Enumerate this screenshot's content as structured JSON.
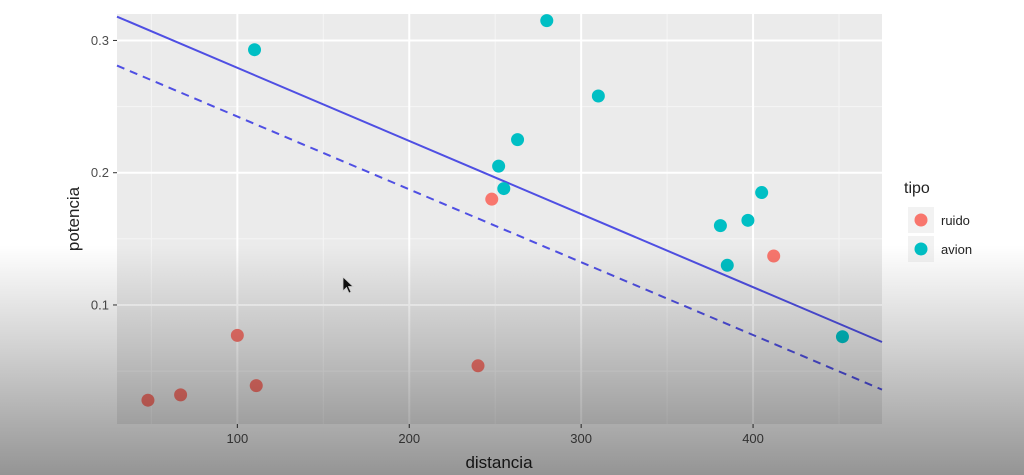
{
  "chart_data": {
    "type": "scatter",
    "title": "",
    "xlabel": "distancia",
    "ylabel": "potencia",
    "xlim": [
      30,
      475
    ],
    "ylim": [
      0.01,
      0.32
    ],
    "x_ticks": [
      {
        "value": 100,
        "label": "100"
      },
      {
        "value": 200,
        "label": "200"
      },
      {
        "value": 300,
        "label": "300"
      },
      {
        "value": 400,
        "label": "400"
      }
    ],
    "y_ticks": [
      {
        "value": 0.1,
        "label": "0.1"
      },
      {
        "value": 0.2,
        "label": "0.2"
      },
      {
        "value": 0.3,
        "label": "0.3"
      }
    ],
    "grid": true,
    "legend": {
      "title": "tipo",
      "position": "right"
    },
    "series": [
      {
        "name": "ruido",
        "color": "#F8766D",
        "points": [
          {
            "x": 48,
            "y": 0.028
          },
          {
            "x": 67,
            "y": 0.032
          },
          {
            "x": 100,
            "y": 0.077
          },
          {
            "x": 111,
            "y": 0.039
          },
          {
            "x": 240,
            "y": 0.054
          },
          {
            "x": 248,
            "y": 0.18
          },
          {
            "x": 412,
            "y": 0.137
          }
        ]
      },
      {
        "name": "avion",
        "color": "#00BFC4",
        "points": [
          {
            "x": 110,
            "y": 0.293
          },
          {
            "x": 252,
            "y": 0.205
          },
          {
            "x": 255,
            "y": 0.188
          },
          {
            "x": 263,
            "y": 0.225
          },
          {
            "x": 280,
            "y": 0.315
          },
          {
            "x": 310,
            "y": 0.258
          },
          {
            "x": 381,
            "y": 0.16
          },
          {
            "x": 385,
            "y": 0.13
          },
          {
            "x": 397,
            "y": 0.164
          },
          {
            "x": 405,
            "y": 0.185
          },
          {
            "x": 452,
            "y": 0.076
          }
        ]
      }
    ],
    "lines": [
      {
        "style": "solid",
        "color": "#4F4FE3",
        "x": [
          30,
          475
        ],
        "y": [
          0.318,
          0.072
        ]
      },
      {
        "style": "dashed",
        "color": "#4F4FE3",
        "x": [
          30,
          475
        ],
        "y": [
          0.281,
          0.036
        ]
      }
    ]
  }
}
